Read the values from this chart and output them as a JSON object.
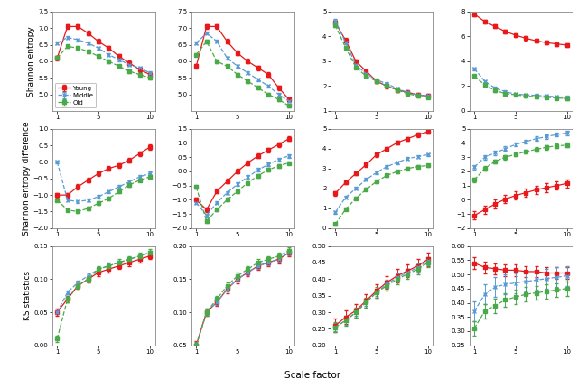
{
  "scale_factors": [
    1,
    2,
    3,
    4,
    5,
    6,
    7,
    8,
    9,
    10
  ],
  "colors": {
    "young": "#e8191a",
    "middle": "#5b9bd5",
    "old": "#4aaa4a"
  },
  "row_labels": [
    "Shannon entropy",
    "Shannon entropy difference",
    "KS statistics"
  ],
  "xlabel": "Scale factor",
  "legend_labels": [
    "Young",
    "Middle",
    "Old"
  ],
  "data": {
    "row0": {
      "col0": {
        "young_y": [
          6.1,
          7.05,
          7.05,
          6.85,
          6.6,
          6.4,
          6.15,
          5.95,
          5.75,
          5.6
        ],
        "young_e": [
          0.07,
          0.07,
          0.07,
          0.07,
          0.07,
          0.07,
          0.07,
          0.07,
          0.07,
          0.07
        ],
        "middle_y": [
          6.55,
          6.72,
          6.65,
          6.55,
          6.4,
          6.2,
          6.05,
          5.9,
          5.8,
          5.65
        ],
        "middle_e": [
          0.04,
          0.04,
          0.04,
          0.04,
          0.04,
          0.04,
          0.04,
          0.04,
          0.04,
          0.04
        ],
        "old_y": [
          6.1,
          6.45,
          6.4,
          6.3,
          6.15,
          6.0,
          5.85,
          5.7,
          5.6,
          5.5
        ],
        "old_e": [
          0.05,
          0.05,
          0.05,
          0.05,
          0.05,
          0.05,
          0.05,
          0.05,
          0.05,
          0.05
        ],
        "ylim": [
          4.5,
          7.5
        ],
        "yticks": [
          5.0,
          5.5,
          6.0,
          6.5,
          7.0,
          7.5
        ]
      },
      "col1": {
        "young_y": [
          5.85,
          7.05,
          7.05,
          6.6,
          6.25,
          6.0,
          5.8,
          5.6,
          5.2,
          4.85
        ],
        "young_e": [
          0.07,
          0.07,
          0.07,
          0.07,
          0.07,
          0.07,
          0.07,
          0.07,
          0.07,
          0.07
        ],
        "middle_y": [
          6.55,
          6.85,
          6.6,
          6.1,
          5.85,
          5.65,
          5.45,
          5.25,
          5.0,
          4.8
        ],
        "middle_e": [
          0.04,
          0.04,
          0.04,
          0.04,
          0.04,
          0.04,
          0.04,
          0.04,
          0.04,
          0.04
        ],
        "old_y": [
          6.2,
          6.6,
          6.0,
          5.85,
          5.6,
          5.4,
          5.2,
          5.0,
          4.85,
          4.65
        ],
        "old_e": [
          0.05,
          0.05,
          0.05,
          0.05,
          0.05,
          0.05,
          0.05,
          0.05,
          0.05,
          0.05
        ],
        "ylim": [
          4.5,
          7.5
        ],
        "yticks": [
          5.0,
          5.5,
          6.0,
          6.5,
          7.0,
          7.5
        ]
      },
      "col2": {
        "young_y": [
          4.55,
          3.85,
          3.0,
          2.6,
          2.2,
          2.0,
          1.85,
          1.75,
          1.65,
          1.6
        ],
        "young_e": [
          0.08,
          0.08,
          0.08,
          0.08,
          0.08,
          0.08,
          0.08,
          0.08,
          0.08,
          0.08
        ],
        "middle_y": [
          4.65,
          3.75,
          2.85,
          2.5,
          2.25,
          2.1,
          1.9,
          1.75,
          1.65,
          1.6
        ],
        "middle_e": [
          0.05,
          0.05,
          0.05,
          0.05,
          0.05,
          0.05,
          0.05,
          0.05,
          0.05,
          0.05
        ],
        "old_y": [
          4.45,
          3.55,
          2.75,
          2.4,
          2.2,
          2.0,
          1.85,
          1.7,
          1.6,
          1.55
        ],
        "old_e": [
          0.06,
          0.06,
          0.06,
          0.06,
          0.06,
          0.06,
          0.06,
          0.06,
          0.06,
          0.06
        ],
        "ylim": [
          1.0,
          5.0
        ],
        "yticks": [
          1.0,
          2.0,
          3.0,
          4.0,
          5.0
        ]
      },
      "col3": {
        "young_y": [
          7.8,
          7.2,
          6.8,
          6.4,
          6.1,
          5.85,
          5.65,
          5.5,
          5.4,
          5.3
        ],
        "young_e": [
          0.15,
          0.15,
          0.15,
          0.15,
          0.15,
          0.15,
          0.15,
          0.15,
          0.15,
          0.15
        ],
        "middle_y": [
          3.4,
          2.4,
          1.85,
          1.55,
          1.35,
          1.3,
          1.25,
          1.2,
          1.15,
          1.1
        ],
        "middle_e": [
          0.1,
          0.1,
          0.1,
          0.1,
          0.1,
          0.1,
          0.1,
          0.1,
          0.1,
          0.1
        ],
        "old_y": [
          2.8,
          2.1,
          1.65,
          1.4,
          1.3,
          1.2,
          1.15,
          1.1,
          1.05,
          1.0
        ],
        "old_e": [
          0.1,
          0.1,
          0.1,
          0.1,
          0.1,
          0.1,
          0.1,
          0.1,
          0.1,
          0.1
        ],
        "ylim": [
          0.0,
          8.0
        ],
        "yticks": [
          0.0,
          2.0,
          4.0,
          6.0,
          8.0
        ]
      }
    },
    "row1": {
      "col0": {
        "young_y": [
          -1.0,
          -1.0,
          -0.75,
          -0.55,
          -0.35,
          -0.2,
          -0.1,
          0.05,
          0.25,
          0.45
        ],
        "young_e": [
          0.07,
          0.07,
          0.07,
          0.07,
          0.07,
          0.07,
          0.07,
          0.07,
          0.07,
          0.07
        ],
        "middle_y": [
          0.0,
          -1.15,
          -1.2,
          -1.15,
          -1.05,
          -0.9,
          -0.75,
          -0.6,
          -0.45,
          -0.35
        ],
        "middle_e": [
          0.05,
          0.05,
          0.05,
          0.05,
          0.05,
          0.05,
          0.05,
          0.05,
          0.05,
          0.05
        ],
        "old_y": [
          -1.15,
          -1.45,
          -1.5,
          -1.4,
          -1.25,
          -1.1,
          -0.9,
          -0.7,
          -0.55,
          -0.45
        ],
        "old_e": [
          0.05,
          0.05,
          0.05,
          0.05,
          0.05,
          0.05,
          0.05,
          0.05,
          0.05,
          0.05
        ],
        "ylim": [
          -2.0,
          1.0
        ],
        "yticks": [
          -2.0,
          -1.5,
          -1.0,
          -0.5,
          0.0,
          0.5,
          1.0
        ]
      },
      "col1": {
        "young_y": [
          -1.0,
          -1.35,
          -0.7,
          -0.35,
          0.0,
          0.3,
          0.55,
          0.75,
          0.95,
          1.15
        ],
        "young_e": [
          0.08,
          0.08,
          0.08,
          0.08,
          0.08,
          0.08,
          0.08,
          0.08,
          0.08,
          0.08
        ],
        "middle_y": [
          -1.1,
          -1.55,
          -1.1,
          -0.75,
          -0.45,
          -0.2,
          0.05,
          0.25,
          0.42,
          0.55
        ],
        "middle_e": [
          0.06,
          0.06,
          0.06,
          0.06,
          0.06,
          0.06,
          0.06,
          0.06,
          0.06,
          0.06
        ],
        "old_y": [
          -0.55,
          -1.75,
          -1.35,
          -1.0,
          -0.7,
          -0.4,
          -0.15,
          0.05,
          0.2,
          0.3
        ],
        "old_e": [
          0.06,
          0.06,
          0.06,
          0.06,
          0.06,
          0.06,
          0.06,
          0.06,
          0.06,
          0.06
        ],
        "ylim": [
          -2.0,
          1.5
        ],
        "yticks": [
          -2.0,
          -1.5,
          -1.0,
          -0.5,
          0.0,
          0.5,
          1.0,
          1.5
        ]
      },
      "col2": {
        "young_y": [
          1.75,
          2.3,
          2.75,
          3.2,
          3.7,
          4.0,
          4.3,
          4.5,
          4.7,
          4.85
        ],
        "young_e": [
          0.1,
          0.1,
          0.1,
          0.1,
          0.1,
          0.1,
          0.1,
          0.1,
          0.1,
          0.1
        ],
        "middle_y": [
          0.8,
          1.55,
          2.0,
          2.45,
          2.8,
          3.1,
          3.3,
          3.5,
          3.6,
          3.7
        ],
        "middle_e": [
          0.07,
          0.07,
          0.07,
          0.07,
          0.07,
          0.07,
          0.07,
          0.07,
          0.07,
          0.07
        ],
        "old_y": [
          0.2,
          0.95,
          1.5,
          1.95,
          2.35,
          2.65,
          2.85,
          3.0,
          3.1,
          3.15
        ],
        "old_e": [
          0.07,
          0.07,
          0.07,
          0.07,
          0.07,
          0.07,
          0.07,
          0.07,
          0.07,
          0.07
        ],
        "ylim": [
          0.0,
          5.0
        ],
        "yticks": [
          0.0,
          1.0,
          2.0,
          3.0,
          4.0,
          5.0
        ]
      },
      "col3": {
        "young_y": [
          -1.1,
          -0.7,
          -0.3,
          0.05,
          0.3,
          0.5,
          0.7,
          0.85,
          1.0,
          1.15
        ],
        "young_e": [
          0.3,
          0.3,
          0.3,
          0.3,
          0.3,
          0.3,
          0.3,
          0.3,
          0.3,
          0.3
        ],
        "middle_y": [
          2.3,
          3.0,
          3.3,
          3.6,
          3.9,
          4.1,
          4.3,
          4.45,
          4.6,
          4.7
        ],
        "middle_e": [
          0.15,
          0.15,
          0.15,
          0.15,
          0.15,
          0.15,
          0.15,
          0.15,
          0.15,
          0.15
        ],
        "old_y": [
          1.4,
          2.2,
          2.7,
          3.0,
          3.2,
          3.4,
          3.55,
          3.7,
          3.8,
          3.85
        ],
        "old_e": [
          0.15,
          0.15,
          0.15,
          0.15,
          0.15,
          0.15,
          0.15,
          0.15,
          0.15,
          0.15
        ],
        "ylim": [
          -2.0,
          5.0
        ],
        "yticks": [
          -2.0,
          -1.0,
          0.0,
          1.0,
          2.0,
          3.0,
          4.0,
          5.0
        ]
      }
    },
    "row2": {
      "col0": {
        "young_y": [
          0.05,
          0.07,
          0.09,
          0.1,
          0.11,
          0.115,
          0.12,
          0.125,
          0.13,
          0.135
        ],
        "young_e": [
          0.005,
          0.005,
          0.005,
          0.005,
          0.005,
          0.005,
          0.005,
          0.005,
          0.005,
          0.005
        ],
        "middle_y": [
          0.05,
          0.08,
          0.095,
          0.105,
          0.115,
          0.12,
          0.125,
          0.13,
          0.135,
          0.14
        ],
        "middle_e": [
          0.003,
          0.003,
          0.003,
          0.003,
          0.003,
          0.003,
          0.003,
          0.003,
          0.003,
          0.003
        ],
        "old_y": [
          0.01,
          0.07,
          0.09,
          0.1,
          0.115,
          0.12,
          0.125,
          0.13,
          0.135,
          0.14
        ],
        "old_e": [
          0.005,
          0.005,
          0.005,
          0.005,
          0.005,
          0.005,
          0.005,
          0.005,
          0.005,
          0.005
        ],
        "ylim": [
          0.0,
          0.15
        ],
        "yticks": [
          0.0,
          0.05,
          0.1,
          0.15
        ]
      },
      "col1": {
        "young_y": [
          0.05,
          0.1,
          0.115,
          0.135,
          0.15,
          0.16,
          0.17,
          0.175,
          0.18,
          0.19
        ],
        "young_e": [
          0.006,
          0.006,
          0.006,
          0.006,
          0.006,
          0.006,
          0.006,
          0.006,
          0.006,
          0.006
        ],
        "middle_y": [
          0.05,
          0.1,
          0.115,
          0.135,
          0.15,
          0.16,
          0.17,
          0.175,
          0.18,
          0.19
        ],
        "middle_e": [
          0.004,
          0.004,
          0.004,
          0.004,
          0.004,
          0.004,
          0.004,
          0.004,
          0.004,
          0.004
        ],
        "old_y": [
          0.05,
          0.1,
          0.12,
          0.14,
          0.155,
          0.165,
          0.175,
          0.18,
          0.185,
          0.193
        ],
        "old_e": [
          0.005,
          0.005,
          0.005,
          0.005,
          0.005,
          0.005,
          0.005,
          0.005,
          0.005,
          0.005
        ],
        "ylim": [
          0.05,
          0.2
        ],
        "yticks": [
          0.05,
          0.1,
          0.15,
          0.2
        ]
      },
      "col2": {
        "young_y": [
          0.26,
          0.285,
          0.305,
          0.335,
          0.365,
          0.39,
          0.41,
          0.425,
          0.44,
          0.46
        ],
        "young_e": [
          0.02,
          0.02,
          0.02,
          0.02,
          0.02,
          0.02,
          0.02,
          0.02,
          0.02,
          0.02
        ],
        "middle_y": [
          0.255,
          0.275,
          0.3,
          0.33,
          0.36,
          0.385,
          0.405,
          0.42,
          0.435,
          0.455
        ],
        "middle_e": [
          0.012,
          0.012,
          0.012,
          0.012,
          0.012,
          0.012,
          0.012,
          0.012,
          0.012,
          0.012
        ],
        "old_y": [
          0.255,
          0.275,
          0.3,
          0.33,
          0.36,
          0.38,
          0.4,
          0.415,
          0.43,
          0.45
        ],
        "old_e": [
          0.015,
          0.015,
          0.015,
          0.015,
          0.015,
          0.015,
          0.015,
          0.015,
          0.015,
          0.015
        ],
        "ylim": [
          0.2,
          0.5
        ],
        "yticks": [
          0.2,
          0.25,
          0.3,
          0.35,
          0.4,
          0.45,
          0.5
        ]
      },
      "col3": {
        "young_y": [
          0.54,
          0.525,
          0.52,
          0.515,
          0.515,
          0.51,
          0.51,
          0.505,
          0.505,
          0.505
        ],
        "young_e": [
          0.02,
          0.02,
          0.02,
          0.02,
          0.02,
          0.02,
          0.02,
          0.02,
          0.02,
          0.02
        ],
        "middle_y": [
          0.37,
          0.43,
          0.455,
          0.465,
          0.47,
          0.475,
          0.48,
          0.485,
          0.49,
          0.495
        ],
        "middle_e": [
          0.035,
          0.035,
          0.035,
          0.035,
          0.035,
          0.035,
          0.035,
          0.035,
          0.035,
          0.035
        ],
        "old_y": [
          0.31,
          0.37,
          0.39,
          0.41,
          0.42,
          0.43,
          0.435,
          0.44,
          0.445,
          0.45
        ],
        "old_e": [
          0.025,
          0.025,
          0.025,
          0.025,
          0.025,
          0.025,
          0.025,
          0.025,
          0.025,
          0.025
        ],
        "ylim": [
          0.25,
          0.6
        ],
        "yticks": [
          0.25,
          0.3,
          0.35,
          0.4,
          0.45,
          0.5,
          0.55,
          0.6
        ]
      }
    }
  }
}
